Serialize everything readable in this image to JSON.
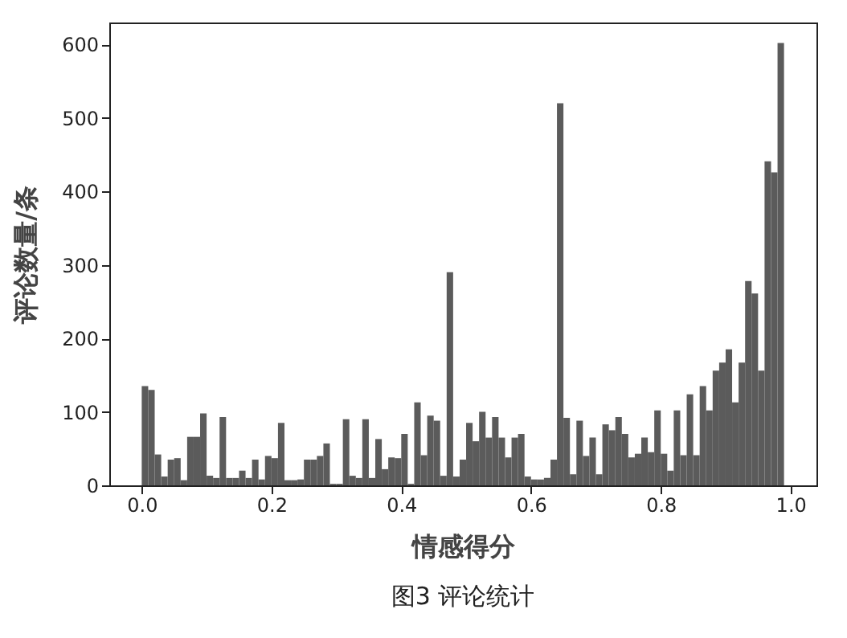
{
  "chart_data": {
    "type": "histogram",
    "xlabel": "情感得分",
    "ylabel": "评论数量/条",
    "annotations": [
      "图3 评论统计"
    ],
    "color": "#5b5b5b",
    "bins": [
      0,
      0.01,
      0.02,
      0.03,
      0.04,
      0.05,
      0.06,
      0.07,
      0.08,
      0.09,
      0.1,
      0.11,
      0.12,
      0.13,
      0.14,
      0.15,
      0.16,
      0.17,
      0.18,
      0.19,
      0.2,
      0.21,
      0.22,
      0.23,
      0.24,
      0.25,
      0.26,
      0.27,
      0.28,
      0.29,
      0.3,
      0.31,
      0.32,
      0.33,
      0.34,
      0.35,
      0.36,
      0.37,
      0.38,
      0.39,
      0.4,
      0.41,
      0.42,
      0.43,
      0.44,
      0.45,
      0.46,
      0.47,
      0.48,
      0.49,
      0.5,
      0.51,
      0.52,
      0.53,
      0.54,
      0.55,
      0.56,
      0.57,
      0.58,
      0.59,
      0.6,
      0.61,
      0.62,
      0.63,
      0.64,
      0.65,
      0.66,
      0.67,
      0.68,
      0.69,
      0.7,
      0.71,
      0.72,
      0.73,
      0.74,
      0.75,
      0.76,
      0.77,
      0.78,
      0.79,
      0.8,
      0.81,
      0.82,
      0.83,
      0.84,
      0.85,
      0.86,
      0.87,
      0.88,
      0.89,
      0.9,
      0.91,
      0.92,
      0.93,
      0.94,
      0.95,
      0.96,
      0.97,
      0.98,
      0.99
    ],
    "values": [
      135,
      130,
      42,
      12,
      35,
      37,
      7,
      66,
      66,
      98,
      13,
      10,
      93,
      10,
      10,
      20,
      10,
      35,
      8,
      40,
      37,
      85,
      7,
      7,
      8,
      35,
      35,
      40,
      57,
      2,
      2,
      90,
      13,
      10,
      90,
      10,
      63,
      22,
      38,
      37,
      70,
      2,
      113,
      41,
      95,
      88,
      13,
      290,
      12,
      35,
      85,
      60,
      100,
      65,
      93,
      65,
      38,
      65,
      70,
      12,
      8,
      8,
      10,
      35,
      520,
      92,
      15,
      88,
      40,
      65,
      15,
      83,
      75,
      93,
      70,
      38,
      43,
      65,
      45,
      102,
      43,
      20,
      102,
      41,
      124,
      41,
      135,
      102,
      156,
      167,
      185,
      113,
      167,
      278,
      261,
      156,
      441,
      426,
      602
    ],
    "xlim": [
      -0.05,
      1.04
    ],
    "ylim": [
      0,
      630
    ],
    "xticks": [
      {
        "value": 0,
        "label": "0.0"
      },
      {
        "value": 0.2,
        "label": "0.2"
      },
      {
        "value": 0.4,
        "label": "0.4"
      },
      {
        "value": 0.6,
        "label": "0.6"
      },
      {
        "value": 0.8,
        "label": "0.8"
      },
      {
        "value": 1,
        "label": "1.0"
      }
    ],
    "yticks": [
      0,
      100,
      200,
      300,
      400,
      500,
      600
    ],
    "grid": false
  }
}
